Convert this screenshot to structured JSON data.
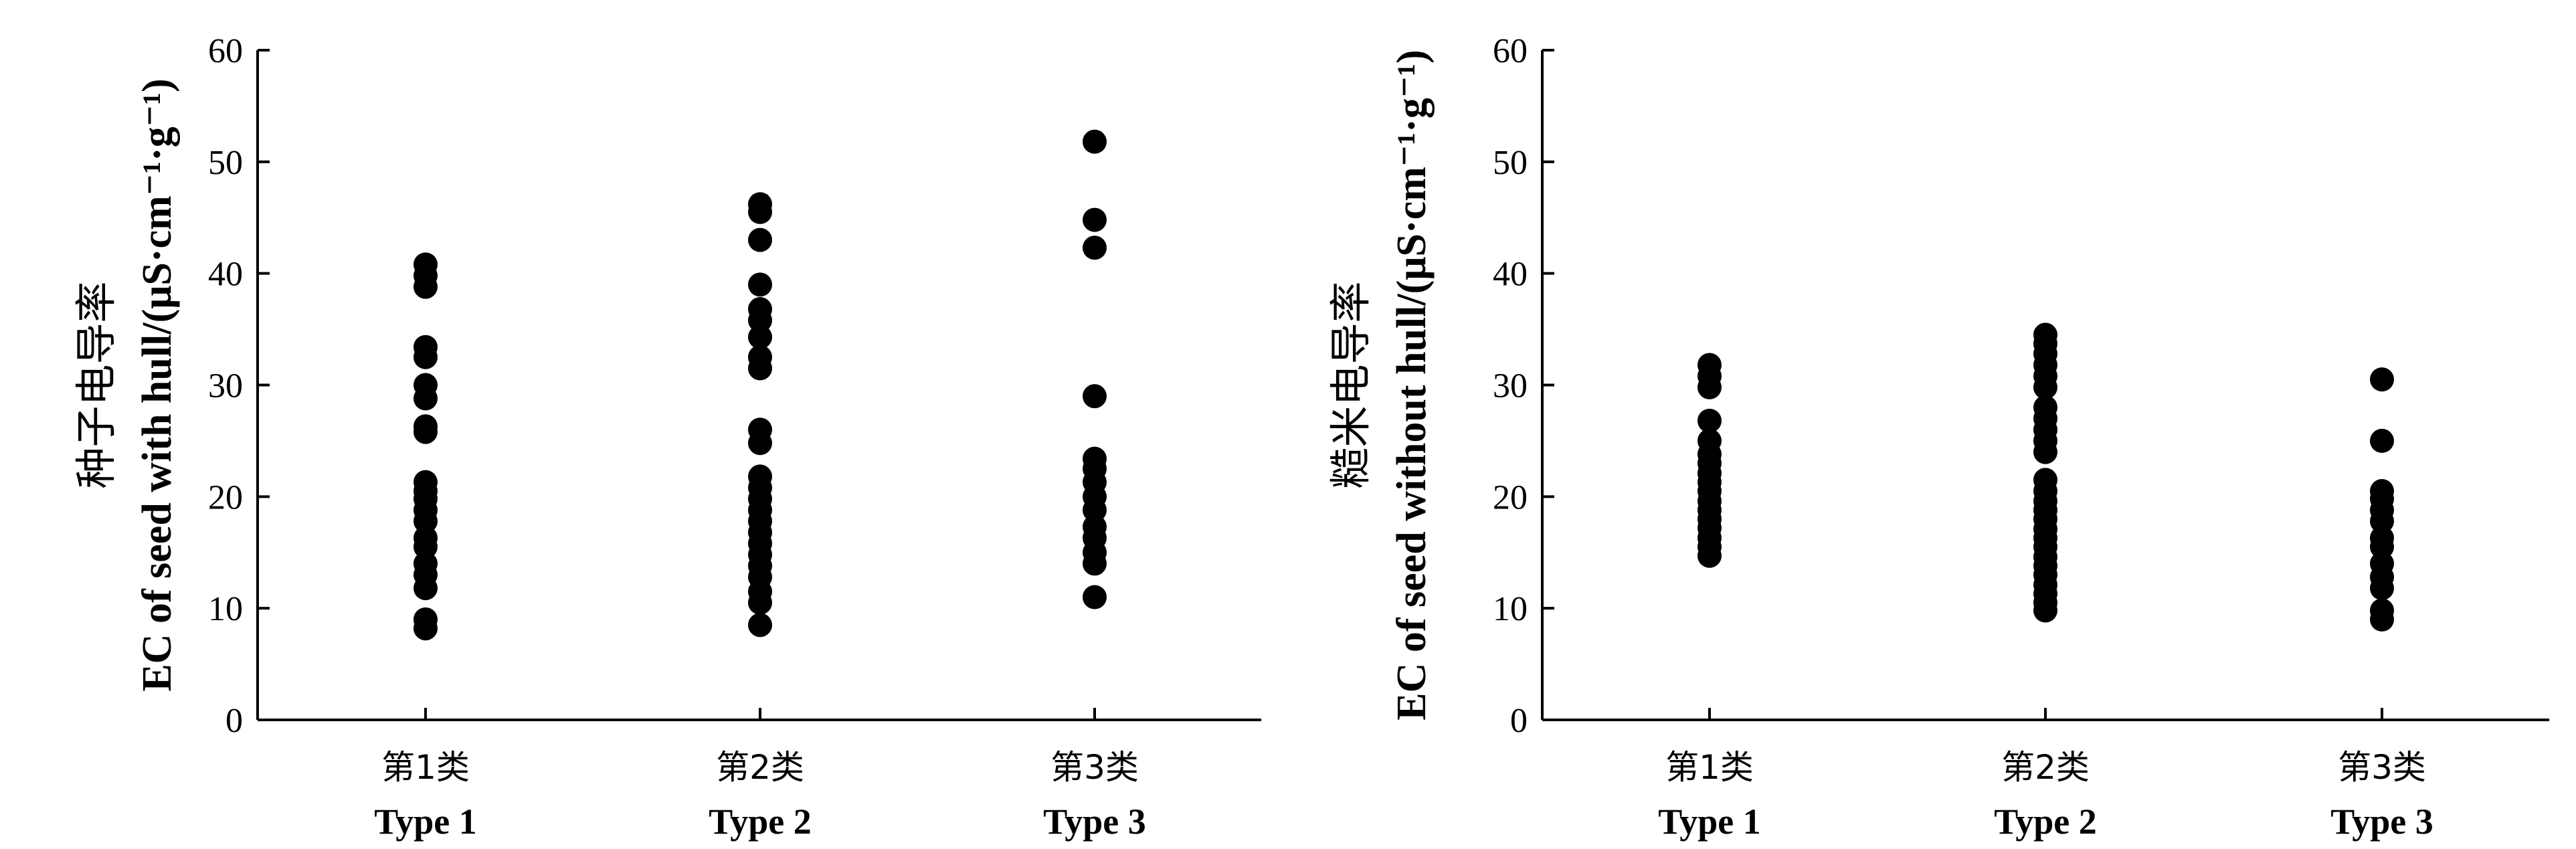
{
  "chart_data": [
    {
      "type": "scatter",
      "ylabel_zh": "种子电导率",
      "ylabel_en": "EC of seed with hull/(μS·cm⁻¹·g⁻¹)",
      "ylim": [
        0,
        60
      ],
      "yticks": [
        "0",
        "10",
        "20",
        "30",
        "40",
        "50",
        "60"
      ],
      "categories": [
        {
          "zh": "第1类",
          "en": "Type 1"
        },
        {
          "zh": "第2类",
          "en": "Type 2"
        },
        {
          "zh": "第3类",
          "en": "Type 3"
        }
      ],
      "series": [
        {
          "category": 0,
          "values": [
            8.2,
            9.0,
            11.8,
            13.0,
            14.0,
            15.5,
            16.3,
            17.8,
            18.8,
            19.8,
            20.5,
            21.3,
            25.8,
            26.3,
            28.8,
            30.0,
            32.5,
            33.4,
            38.8,
            39.8,
            40.8
          ]
        },
        {
          "category": 1,
          "values": [
            8.5,
            10.5,
            11.5,
            12.8,
            13.8,
            14.8,
            15.8,
            16.8,
            17.8,
            18.8,
            19.8,
            20.8,
            21.8,
            24.8,
            26.0,
            31.5,
            32.5,
            34.3,
            35.8,
            36.8,
            39.0,
            43.0,
            45.5,
            46.2
          ]
        },
        {
          "category": 2,
          "values": [
            11.0,
            14.0,
            15.0,
            16.3,
            17.3,
            18.8,
            20.0,
            21.3,
            22.5,
            23.4,
            29.0,
            42.3,
            44.8,
            51.8
          ]
        }
      ]
    },
    {
      "type": "scatter",
      "ylabel_zh": "糙米电导率",
      "ylabel_en": "EC of seed  without hull/(μS·cm⁻¹·g⁻¹)",
      "ylim": [
        0,
        60
      ],
      "yticks": [
        "0",
        "10",
        "20",
        "30",
        "40",
        "50",
        "60"
      ],
      "categories": [
        {
          "zh": "第1类",
          "en": "Type 1"
        },
        {
          "zh": "第2类",
          "en": "Type 2"
        },
        {
          "zh": "第3类",
          "en": "Type 3"
        }
      ],
      "series": [
        {
          "category": 0,
          "values": [
            14.7,
            15.5,
            16.3,
            17.2,
            18.0,
            18.8,
            19.6,
            20.5,
            21.3,
            22.1,
            23.0,
            23.8,
            25.0,
            26.8,
            29.8,
            30.8,
            31.8
          ]
        },
        {
          "category": 1,
          "values": [
            9.8,
            10.5,
            11.3,
            12.1,
            13.0,
            13.8,
            14.6,
            15.5,
            16.3,
            17.1,
            18.0,
            18.8,
            19.6,
            20.5,
            21.5,
            24.0,
            25.0,
            26.0,
            27.0,
            28.0,
            29.8,
            30.8,
            31.8,
            32.8,
            33.7,
            34.5
          ]
        },
        {
          "category": 2,
          "values": [
            9.0,
            9.8,
            11.8,
            12.8,
            14.0,
            15.5,
            16.3,
            17.8,
            18.8,
            19.8,
            20.5,
            25.0,
            30.5
          ]
        }
      ]
    }
  ]
}
